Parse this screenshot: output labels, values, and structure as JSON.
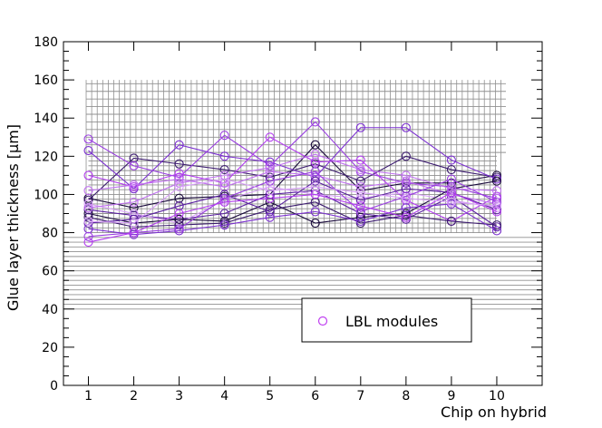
{
  "chart_data": {
    "type": "line",
    "title": "",
    "xlabel": "Chip on hybrid",
    "ylabel": "Glue layer thickness [μm]",
    "x": [
      1,
      2,
      3,
      4,
      5,
      6,
      7,
      8,
      9,
      10
    ],
    "xlim": [
      0.45,
      11.0
    ],
    "ylim": [
      0,
      180
    ],
    "xticks": [
      "1",
      "2",
      "3",
      "4",
      "5",
      "6",
      "7",
      "8",
      "9",
      "10"
    ],
    "yticks": [
      "0",
      "20",
      "40",
      "60",
      "80",
      "100",
      "120",
      "140",
      "160",
      "180"
    ],
    "grid": "gray reference lines between 40 and 160",
    "legend": {
      "label": "LBL modules",
      "position": "lower-right"
    },
    "marker": "open-circle",
    "colors": [
      "#1a0a3c",
      "#3b1a6e",
      "#5a1fa0",
      "#7b2fd0",
      "#9a3fe0",
      "#b33cf0",
      "#c070f0",
      "#d8a0f8"
    ],
    "series": [
      {
        "values": [
          98,
          93,
          98,
          99,
          100,
          126,
          102,
          106,
          106,
          110
        ]
      },
      {
        "values": [
          97,
          119,
          116,
          113,
          109,
          116,
          107,
          120,
          113,
          109
        ]
      },
      {
        "values": [
          92,
          89,
          87,
          90,
          100,
          102,
          90,
          87,
          99,
          83
        ]
      },
      {
        "values": [
          123,
          103,
          126,
          120,
          117,
          109,
          135,
          135,
          118,
          108
        ]
      },
      {
        "values": [
          129,
          115,
          109,
          131,
          115,
          138,
          112,
          106,
          104,
          98
        ]
      },
      {
        "values": [
          110,
          104,
          111,
          106,
          130,
          117,
          118,
          97,
          86,
          99
        ]
      },
      {
        "values": [
          102,
          105,
          108,
          104,
          112,
          110,
          104,
          107,
          100,
          95
        ]
      },
      {
        "values": [
          95,
          90,
          85,
          97,
          104,
          100,
          98,
          101,
          97,
          93
        ]
      },
      {
        "values": [
          90,
          85,
          87,
          86,
          96,
          85,
          88,
          90,
          103,
          107
        ]
      },
      {
        "values": [
          88,
          83,
          84,
          85,
          92,
          96,
          85,
          89,
          86,
          84
        ]
      },
      {
        "values": [
          85,
          87,
          94,
          100,
          91,
          107,
          97,
          103,
          101,
          92
        ]
      },
      {
        "values": [
          82,
          79,
          81,
          84,
          88,
          91,
          86,
          93,
          95,
          81
        ]
      },
      {
        "values": [
          78,
          80,
          82,
          98,
          107,
          112,
          91,
          99,
          108,
          96
        ]
      },
      {
        "values": [
          75,
          80,
          90,
          96,
          98,
          100,
          94,
          88,
          101,
          91
        ]
      },
      {
        "values": [
          93,
          96,
          106,
          110,
          114,
          121,
          113,
          110,
          103,
          102
        ]
      },
      {
        "values": [
          86,
          85,
          104,
          108,
          102,
          104,
          101,
          98,
          96,
          94
        ]
      }
    ]
  }
}
